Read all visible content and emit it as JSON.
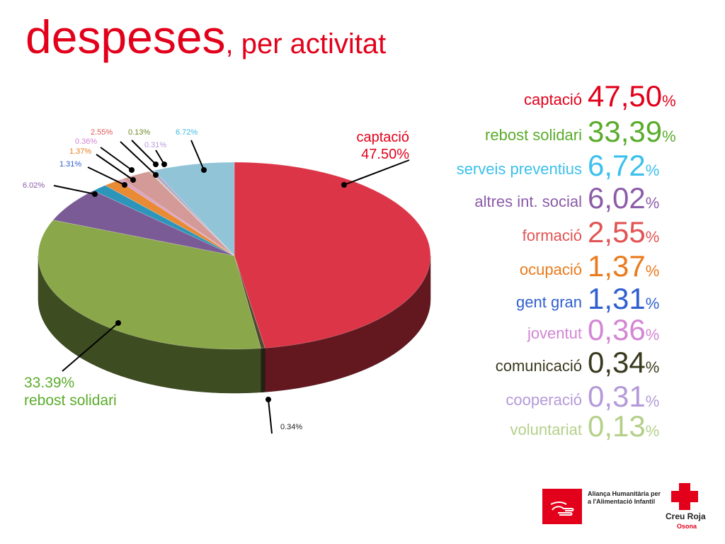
{
  "title": {
    "main": "despeses",
    "sub": ", per activitat"
  },
  "colors": {
    "title": "#e2001a"
  },
  "chart_data": {
    "type": "pie",
    "title": "despeses, per activitat",
    "slices": [
      {
        "name": "captació",
        "value": 47.5,
        "color": "#dc3548",
        "label": "captació\n47.50%",
        "label_color": "#e2001a"
      },
      {
        "name": "comunicació",
        "value": 0.34,
        "color": "#4e4a2e",
        "label": "0.34%",
        "label_color": "#222222"
      },
      {
        "name": "rebost solidari",
        "value": 33.39,
        "color": "#8aa84a",
        "label": "33.39%\nrebost solidari",
        "label_color": "#5aac2c"
      },
      {
        "name": "altres int. social",
        "value": 6.02,
        "color": "#7b5b96",
        "label": "6.02%",
        "label_color": "#8b5ca8"
      },
      {
        "name": "gent gran",
        "value": 1.31,
        "color": "#2d95ba",
        "label": "1.31%",
        "label_color": "#2f5fd0"
      },
      {
        "name": "ocupació",
        "value": 1.37,
        "color": "#e98a34",
        "label": "1.37%",
        "label_color": "#e67e22"
      },
      {
        "name": "joventut",
        "value": 0.36,
        "color": "#d9a0c8",
        "label": "0.36%",
        "label_color": "#d386d4"
      },
      {
        "name": "formació",
        "value": 2.55,
        "color": "#d49a98",
        "label": "2.55%",
        "label_color": "#e05a5a"
      },
      {
        "name": "voluntariat",
        "value": 0.13,
        "color": "#c8d0a4",
        "label": "0.13%",
        "label_color": "#6a8a28"
      },
      {
        "name": "cooperació",
        "value": 0.31,
        "color": "#b8a4cc",
        "label": "0.31%",
        "label_color": "#b89ad8"
      },
      {
        "name": "serveis preventius",
        "value": 6.72,
        "color": "#92c4d8",
        "label": "6.72%",
        "label_color": "#3cb8e0"
      }
    ]
  },
  "legend": [
    {
      "name": "captació",
      "value": "47,50",
      "pct": "%",
      "color": "#e2001a"
    },
    {
      "name": "rebost solidari",
      "value": "33,39",
      "pct": "%",
      "color": "#5aac2c"
    },
    {
      "name": "serveis preventius",
      "value": "6,72",
      "pct": "%",
      "color": "#3cc0ec"
    },
    {
      "name": "altres int. social",
      "value": "6,02",
      "pct": "%",
      "color": "#8b5ca8"
    },
    {
      "name": "formació",
      "value": "2,55",
      "pct": "%",
      "color": "#e25454"
    },
    {
      "name": "ocupació",
      "value": "1,37",
      "pct": "%",
      "color": "#ea7a1c"
    },
    {
      "name": "gent gran",
      "value": "1,31",
      "pct": "%",
      "color": "#2f5fd0"
    },
    {
      "name": "joventut",
      "value": "0,36",
      "pct": "%",
      "color": "#d386d4"
    },
    {
      "name": "comunicació",
      "value": "0,34",
      "pct": "%",
      "color": "#3a3a1e"
    },
    {
      "name": "cooperació",
      "value": "0,31",
      "pct": "%",
      "color": "#b49ad8"
    },
    {
      "name": "voluntariat",
      "value": "0,13",
      "pct": "%",
      "color": "#b4d08a"
    }
  ],
  "logos": {
    "aliansa_text": "Aliança Humanitària per a l'Alimentació Infantil",
    "creu_name": "Creu Roja",
    "creu_sub": "Osona"
  }
}
